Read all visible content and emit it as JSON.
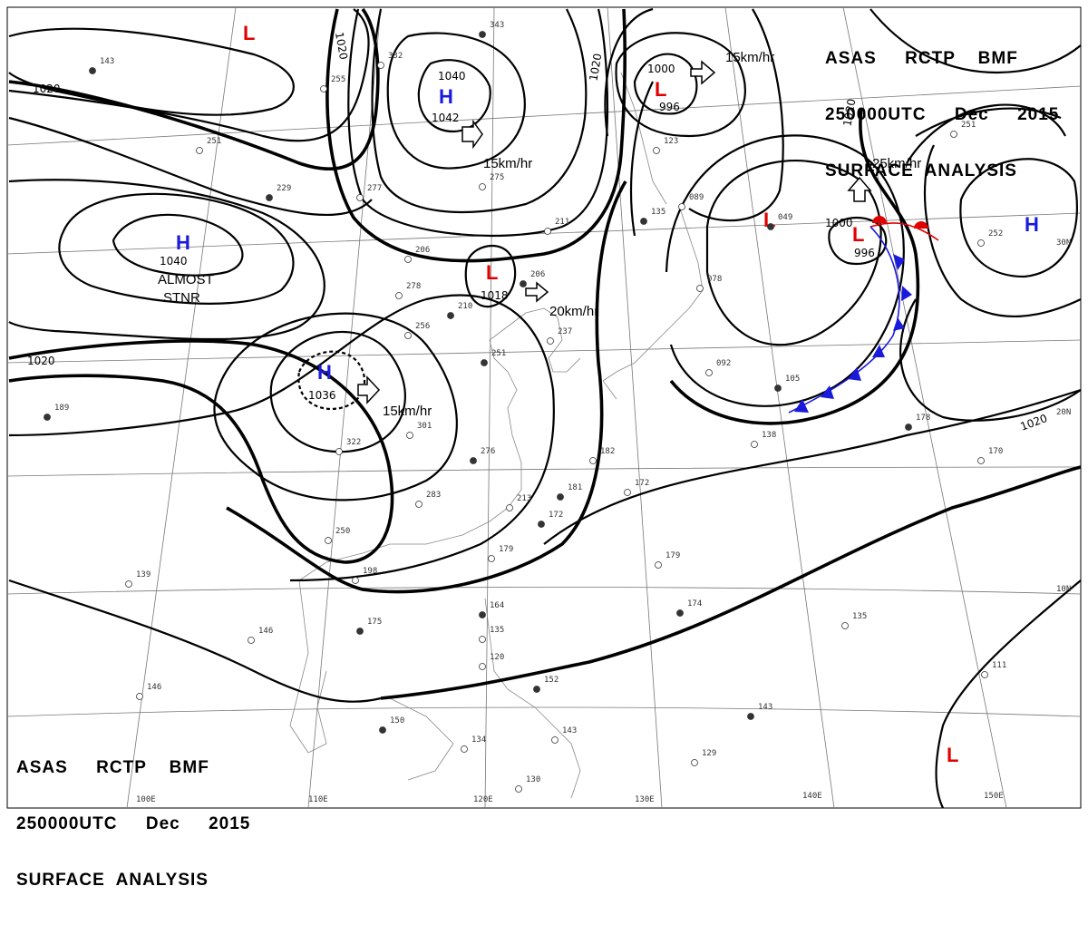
{
  "header_top": {
    "line1": "ASAS     RCTP    BMF",
    "line2": "250000UTC     Dec     2015",
    "line3": "SURFACE  ANALYSIS"
  },
  "header_bottom": {
    "line1": "ASAS     RCTP    BMF",
    "line2": "250000UTC     Dec     2015",
    "line3": "SURFACE  ANALYSIS"
  },
  "colors": {
    "high": "#1a1adb",
    "low": "#e00000",
    "warm_front": "#e00000",
    "cold_front": "#1a1adb",
    "isobar": "#000000"
  },
  "centers": [
    {
      "type": "H",
      "pressure": "1042",
      "motion": "15km/hr"
    },
    {
      "type": "H",
      "pressure": "1040",
      "note1": "ALMOST",
      "note2": "STNR"
    },
    {
      "type": "H",
      "pressure": "1036",
      "motion": "15km/hr"
    },
    {
      "type": "L",
      "pressure": "1018",
      "motion": "20km/hr"
    },
    {
      "type": "L",
      "pressure": "996",
      "motion": "15km/hr"
    },
    {
      "type": "L",
      "pressure": "996",
      "motion": "25km/hr"
    },
    {
      "type": "L",
      "pressure": ""
    },
    {
      "type": "L",
      "pressure": ""
    },
    {
      "type": "H",
      "pressure": ""
    },
    {
      "type": "L",
      "pressure": ""
    }
  ],
  "isobar_labels": [
    "1020",
    "1020",
    "1020",
    "1040",
    "1000",
    "1020",
    "1020",
    "1000",
    "1020"
  ],
  "lon_labels": [
    "100E",
    "110E",
    "120E",
    "130E",
    "140E",
    "150E"
  ],
  "lat_labels": [
    "30N",
    "20N",
    "10N"
  ],
  "stations": [
    "143",
    "255",
    "251",
    "229",
    "277",
    "332",
    "343",
    "206",
    "278",
    "210",
    "256",
    "275",
    "206",
    "211",
    "237",
    "251",
    "301",
    "322",
    "276",
    "283",
    "213",
    "172",
    "250",
    "179",
    "189",
    "198",
    "139",
    "175",
    "146",
    "146",
    "164",
    "135",
    "120",
    "150",
    "134",
    "143",
    "152",
    "130",
    "182",
    "181",
    "172",
    "179",
    "174",
    "135",
    "111",
    "143",
    "129",
    "092",
    "105",
    "138",
    "170",
    "178",
    "251",
    "252",
    "049",
    "078",
    "089",
    "135",
    "123"
  ]
}
